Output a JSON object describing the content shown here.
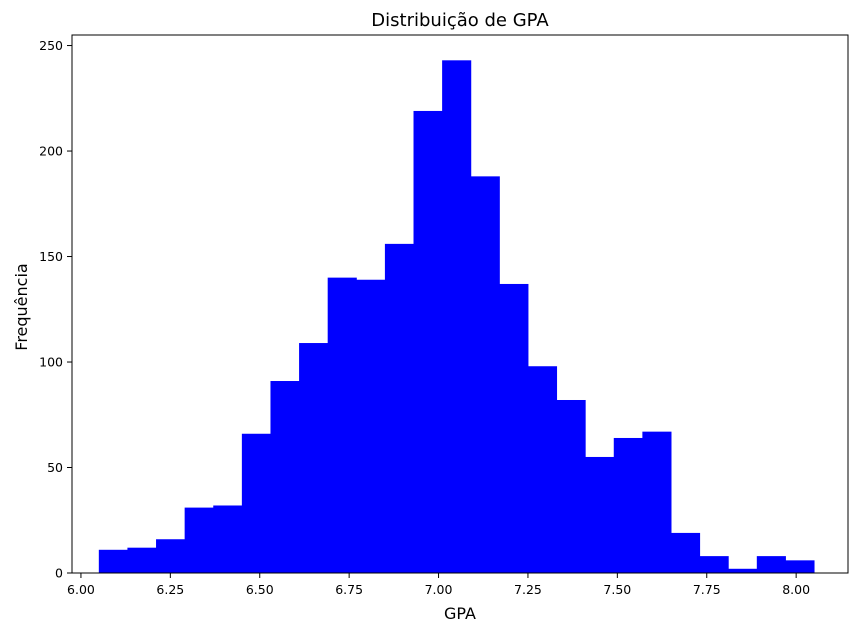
{
  "chart_data": {
    "type": "bar",
    "title": "Distribuição de GPA",
    "xlabel": "GPA",
    "ylabel": "Frequência",
    "xlim": [
      5.975,
      8.145
    ],
    "ylim": [
      0,
      255
    ],
    "grid": false,
    "legend": "none",
    "bar_color": "#0000ff",
    "bin_edges": [
      6.05,
      6.13,
      6.21,
      6.29,
      6.37,
      6.45,
      6.53,
      6.61,
      6.69,
      6.77,
      6.85,
      6.93,
      7.01,
      7.09,
      7.17,
      7.25,
      7.33,
      7.41,
      7.49,
      7.57,
      7.65,
      7.73,
      7.81,
      7.89,
      7.97,
      8.05
    ],
    "values": [
      11,
      12,
      16,
      31,
      32,
      66,
      91,
      109,
      140,
      139,
      156,
      219,
      243,
      188,
      137,
      98,
      82,
      55,
      64,
      67,
      19,
      8,
      2,
      8,
      6
    ],
    "x_ticks": [
      6.0,
      6.25,
      6.5,
      6.75,
      7.0,
      7.25,
      7.5,
      7.75,
      8.0
    ],
    "x_tick_labels": [
      "6.00",
      "6.25",
      "6.50",
      "6.75",
      "7.00",
      "7.25",
      "7.50",
      "7.75",
      "8.00"
    ],
    "y_ticks": [
      0,
      50,
      100,
      150,
      200,
      250
    ],
    "y_tick_labels": [
      "0",
      "50",
      "100",
      "150",
      "200",
      "250"
    ]
  }
}
